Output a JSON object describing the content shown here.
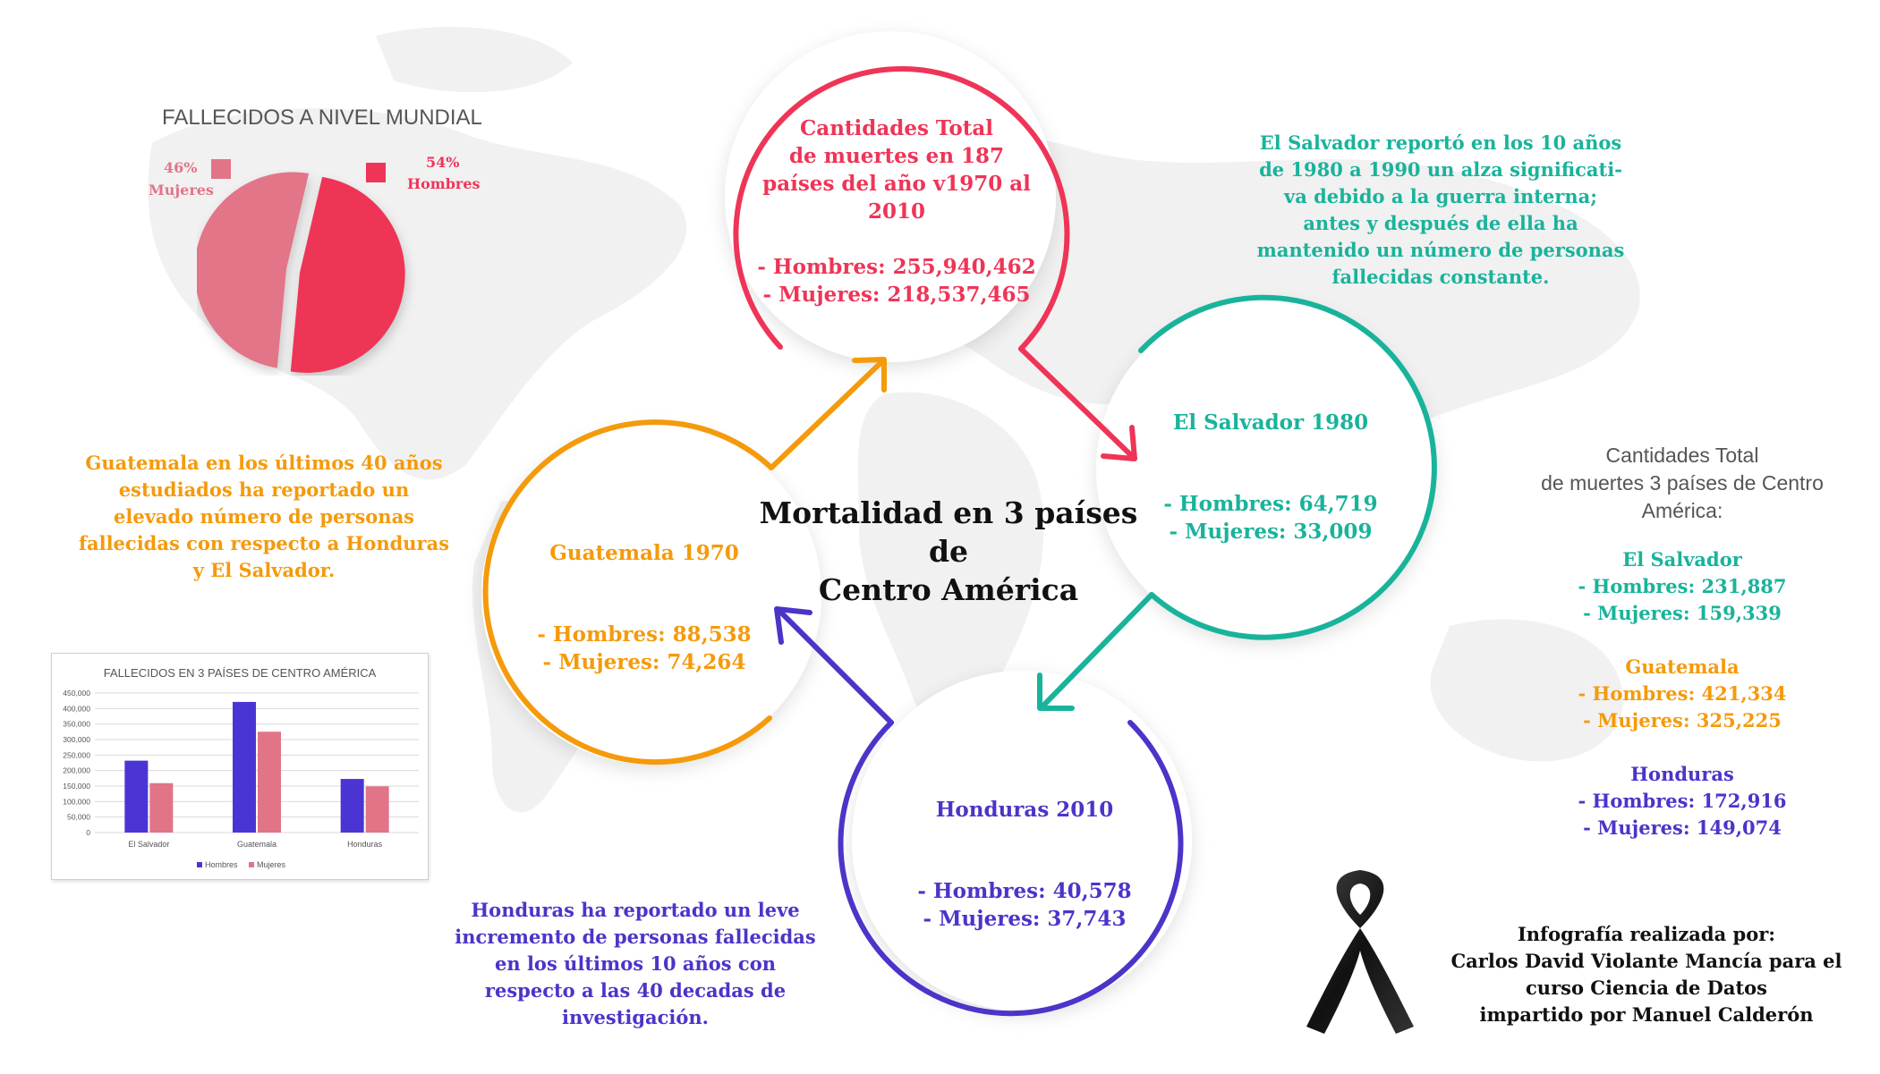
{
  "title": "Mortalidad en 3 países\nde\nCentro América",
  "colors": {
    "red": "#ee3557",
    "teal": "#19b39b",
    "orange": "#f59a0b",
    "purple": "#4a35c9",
    "pink": "#e27488",
    "chart_blue": "#4a35d4",
    "chart_pink": "#e27488"
  },
  "pie": {
    "title": "FALLECIDOS A NIVEL MUNDIAL",
    "women_pct": "46%",
    "women_label": "Mujeres",
    "men_pct": "54%",
    "men_label": "Hombres"
  },
  "circles": {
    "world": {
      "heading": "Cantidades Total\nde muertes en 187\npaíses del año v1970 al 2010",
      "men": "- Hombres: 255,940,462",
      "women": "- Mujeres: 218,537,465"
    },
    "el_salvador": {
      "heading": "El Salvador 1980",
      "men": "- Hombres: 64,719",
      "women": "- Mujeres: 33,009"
    },
    "guatemala": {
      "heading": "Guatemala 1970",
      "men": "- Hombres: 88,538",
      "women": "- Mujeres: 74,264"
    },
    "honduras": {
      "heading": "Honduras 2010",
      "men": "- Hombres: 40,578",
      "women": "- Mujeres: 37,743"
    }
  },
  "notes": {
    "el_salvador": "El Salvador reportó en los 10 años\nde 1980 a 1990 un alza significati-\nva debido a la guerra interna;\nantes y después de ella ha\nmantenido un número de personas\nfallecidas constante.",
    "guatemala": "Guatemala en los últimos 40 años\nestudiados ha reportado un\nelevado número de personas\nfallecidas con respecto a Honduras\ny El Salvador.",
    "honduras": "Honduras ha reportado un leve\nincremento de personas fallecidas\nen los últimos 10 años con\nrespecto a las 40 decadas de\ninvestigación."
  },
  "totals": {
    "heading": "Cantidades Total\nde muertes 3 países de Centro\nAmérica:",
    "el_salvador": {
      "name": "El Salvador",
      "men": "- Hombres: 231,887",
      "women": "- Mujeres: 159,339"
    },
    "guatemala": {
      "name": "Guatemala",
      "men": "- Hombres: 421,334",
      "women": "- Mujeres: 325,225"
    },
    "honduras": {
      "name": "Honduras",
      "men": "- Hombres: 172,916",
      "women": "- Mujeres: 149,074"
    }
  },
  "credits": "Infografía realizada por:\nCarlos David Violante Mancía para el\ncurso Ciencia de Datos\nimpartido por Manuel Calderón",
  "chart_data": {
    "type": "bar",
    "title": "FALLECIDOS EN 3 PAÍSES DE CENTRO AMÉRICA",
    "categories": [
      "El Salvador",
      "Guatemala",
      "Honduras"
    ],
    "series": [
      {
        "name": "Hombres",
        "values": [
          231887,
          421334,
          172916
        ]
      },
      {
        "name": "Mujeres",
        "values": [
          159339,
          325225,
          149074
        ]
      }
    ],
    "ylim": [
      0,
      450000
    ],
    "yticks": [
      "450,000",
      "400,000",
      "350,000",
      "300,000",
      "250,000",
      "200,000",
      "150,000",
      "100,000",
      "50,000",
      "0"
    ],
    "ytick_values": [
      450000,
      400000,
      350000,
      300000,
      250000,
      200000,
      150000,
      100000,
      50000,
      0
    ],
    "grid": true,
    "legend": "bottom"
  }
}
